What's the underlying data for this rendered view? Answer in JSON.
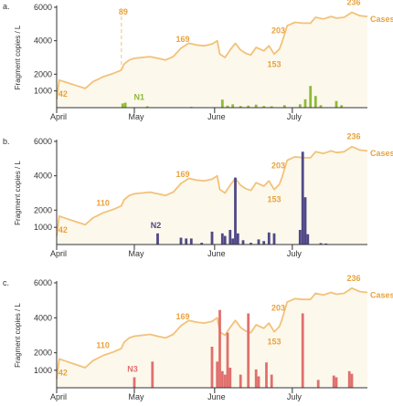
{
  "colors": {
    "cases": "#f2c27a",
    "area": "#fdf8ec",
    "axis": "#333333",
    "annotation": "#e8a33d"
  },
  "chart_data": [
    {
      "type": "bar",
      "panel": "a.",
      "ylabel": "Fragment copies / L",
      "yticks": [
        1000,
        2000,
        4000,
        6000
      ],
      "ylim": [
        0,
        6000
      ],
      "xlim": [
        0,
        120
      ],
      "month_ticks": [
        {
          "label": "April",
          "day": 0
        },
        {
          "label": "May",
          "day": 30
        },
        {
          "label": "June",
          "day": 61
        },
        {
          "label": "July",
          "day": 91
        }
      ],
      "series_label": "N1",
      "bar_color": "#8fba3b",
      "bars": [
        {
          "day": 25.5,
          "value": 250
        },
        {
          "day": 26.5,
          "value": 300
        },
        {
          "day": 35,
          "value": 80
        },
        {
          "day": 52,
          "value": 50
        },
        {
          "day": 64,
          "value": 480
        },
        {
          "day": 66,
          "value": 120
        },
        {
          "day": 68,
          "value": 200
        },
        {
          "day": 71,
          "value": 100
        },
        {
          "day": 74,
          "value": 120
        },
        {
          "day": 77,
          "value": 180
        },
        {
          "day": 80,
          "value": 100
        },
        {
          "day": 83,
          "value": 80
        },
        {
          "day": 88,
          "value": 150
        },
        {
          "day": 94,
          "value": 200
        },
        {
          "day": 96,
          "value": 500
        },
        {
          "day": 98,
          "value": 1300
        },
        {
          "day": 100,
          "value": 700
        },
        {
          "day": 102,
          "value": 150
        },
        {
          "day": 108,
          "value": 400
        },
        {
          "day": 110,
          "value": 150
        }
      ],
      "cases_label": "Cases",
      "cases_annotations": [
        {
          "label": "42",
          "day": 1
        },
        {
          "label": "89",
          "day": 25,
          "dashed": true
        },
        {
          "label": "169",
          "day": 48
        },
        {
          "label": "153",
          "day": 84
        },
        {
          "label": "203",
          "day": 87
        },
        {
          "label": "236",
          "day": 114
        }
      ]
    },
    {
      "type": "bar",
      "panel": "b.",
      "ylabel": "Fragment copies / L",
      "yticks": [
        1000,
        2000,
        4000,
        6000
      ],
      "ylim": [
        0,
        6000
      ],
      "xlim": [
        0,
        120
      ],
      "month_ticks": [
        {
          "label": "April",
          "day": 0
        },
        {
          "label": "May",
          "day": 30
        },
        {
          "label": "June",
          "day": 61
        },
        {
          "label": "July",
          "day": 91
        }
      ],
      "series_label": "N2",
      "bar_color": "#4f4987",
      "bars": [
        {
          "day": 39,
          "value": 650
        },
        {
          "day": 48,
          "value": 400
        },
        {
          "day": 50,
          "value": 350
        },
        {
          "day": 52,
          "value": 350
        },
        {
          "day": 56,
          "value": 100
        },
        {
          "day": 60,
          "value": 750
        },
        {
          "day": 64,
          "value": 650
        },
        {
          "day": 65,
          "value": 500
        },
        {
          "day": 67,
          "value": 850
        },
        {
          "day": 68,
          "value": 350
        },
        {
          "day": 69,
          "value": 3900
        },
        {
          "day": 70,
          "value": 650
        },
        {
          "day": 72,
          "value": 250
        },
        {
          "day": 75,
          "value": 100
        },
        {
          "day": 78,
          "value": 300
        },
        {
          "day": 80,
          "value": 200
        },
        {
          "day": 82,
          "value": 700
        },
        {
          "day": 84,
          "value": 650
        },
        {
          "day": 94,
          "value": 850
        },
        {
          "day": 95,
          "value": 5400
        },
        {
          "day": 96,
          "value": 2750
        },
        {
          "day": 97,
          "value": 600
        },
        {
          "day": 102,
          "value": 80
        },
        {
          "day": 104,
          "value": 60
        }
      ],
      "cases_label": "Cases",
      "cases_annotations": [
        {
          "label": "42",
          "day": 1
        },
        {
          "label": "110",
          "day": 20
        },
        {
          "label": "169",
          "day": 48
        },
        {
          "label": "153",
          "day": 84
        },
        {
          "label": "203",
          "day": 87
        },
        {
          "label": "236",
          "day": 114
        }
      ]
    },
    {
      "type": "bar",
      "panel": "c.",
      "ylabel": "Fragment copies / L",
      "yticks": [
        1000,
        2000,
        4000,
        6000
      ],
      "ylim": [
        0,
        6000
      ],
      "xlim": [
        0,
        120
      ],
      "month_ticks": [
        {
          "label": "April",
          "day": 0
        },
        {
          "label": "May",
          "day": 30
        },
        {
          "label": "June",
          "day": 61
        },
        {
          "label": "July",
          "day": 91
        }
      ],
      "series_label": "N3",
      "bar_color": "#e0706e",
      "bars": [
        {
          "day": 30,
          "value": 600
        },
        {
          "day": 37,
          "value": 1500
        },
        {
          "day": 60,
          "value": 2350
        },
        {
          "day": 62,
          "value": 1500
        },
        {
          "day": 63,
          "value": 4450
        },
        {
          "day": 64,
          "value": 950
        },
        {
          "day": 65,
          "value": 750
        },
        {
          "day": 66,
          "value": 3150
        },
        {
          "day": 67,
          "value": 1150
        },
        {
          "day": 71,
          "value": 750
        },
        {
          "day": 74,
          "value": 4250
        },
        {
          "day": 77,
          "value": 1050
        },
        {
          "day": 78,
          "value": 650
        },
        {
          "day": 81,
          "value": 1450
        },
        {
          "day": 83,
          "value": 750
        },
        {
          "day": 95,
          "value": 4250
        },
        {
          "day": 101,
          "value": 450
        },
        {
          "day": 107,
          "value": 700
        },
        {
          "day": 108,
          "value": 600
        },
        {
          "day": 113,
          "value": 950
        },
        {
          "day": 114,
          "value": 800
        }
      ],
      "cases_label": "Cases",
      "cases_annotations": [
        {
          "label": "42",
          "day": 1
        },
        {
          "label": "110",
          "day": 20
        },
        {
          "label": "169",
          "day": 48
        },
        {
          "label": "153",
          "day": 84
        },
        {
          "label": "203",
          "day": 87
        },
        {
          "label": "236",
          "day": 114
        }
      ]
    }
  ],
  "cases_line": [
    [
      0,
      500
    ],
    [
      1,
      1650
    ],
    [
      4,
      1500
    ],
    [
      8,
      1300
    ],
    [
      11,
      1150
    ],
    [
      14,
      1550
    ],
    [
      18,
      1850
    ],
    [
      22,
      2050
    ],
    [
      25,
      2250
    ],
    [
      26,
      2600
    ],
    [
      28,
      2850
    ],
    [
      30,
      2950
    ],
    [
      33,
      3000
    ],
    [
      36,
      3050
    ],
    [
      39,
      2950
    ],
    [
      42,
      2850
    ],
    [
      45,
      3050
    ],
    [
      48,
      3550
    ],
    [
      51,
      3850
    ],
    [
      54,
      3750
    ],
    [
      57,
      3700
    ],
    [
      60,
      3800
    ],
    [
      62,
      4000
    ],
    [
      63,
      3200
    ],
    [
      65,
      3000
    ],
    [
      67,
      3450
    ],
    [
      69,
      3850
    ],
    [
      71,
      3450
    ],
    [
      73,
      3250
    ],
    [
      75,
      3150
    ],
    [
      77,
      3600
    ],
    [
      80,
      3400
    ],
    [
      82,
      3700
    ],
    [
      84,
      3200
    ],
    [
      86,
      3500
    ],
    [
      87,
      3900
    ],
    [
      89,
      4900
    ],
    [
      92,
      5100
    ],
    [
      95,
      5050
    ],
    [
      98,
      5050
    ],
    [
      100,
      5400
    ],
    [
      103,
      5300
    ],
    [
      106,
      5450
    ],
    [
      108,
      5350
    ],
    [
      111,
      5400
    ],
    [
      114,
      5700
    ],
    [
      117,
      5500
    ],
    [
      120,
      5450
    ]
  ]
}
